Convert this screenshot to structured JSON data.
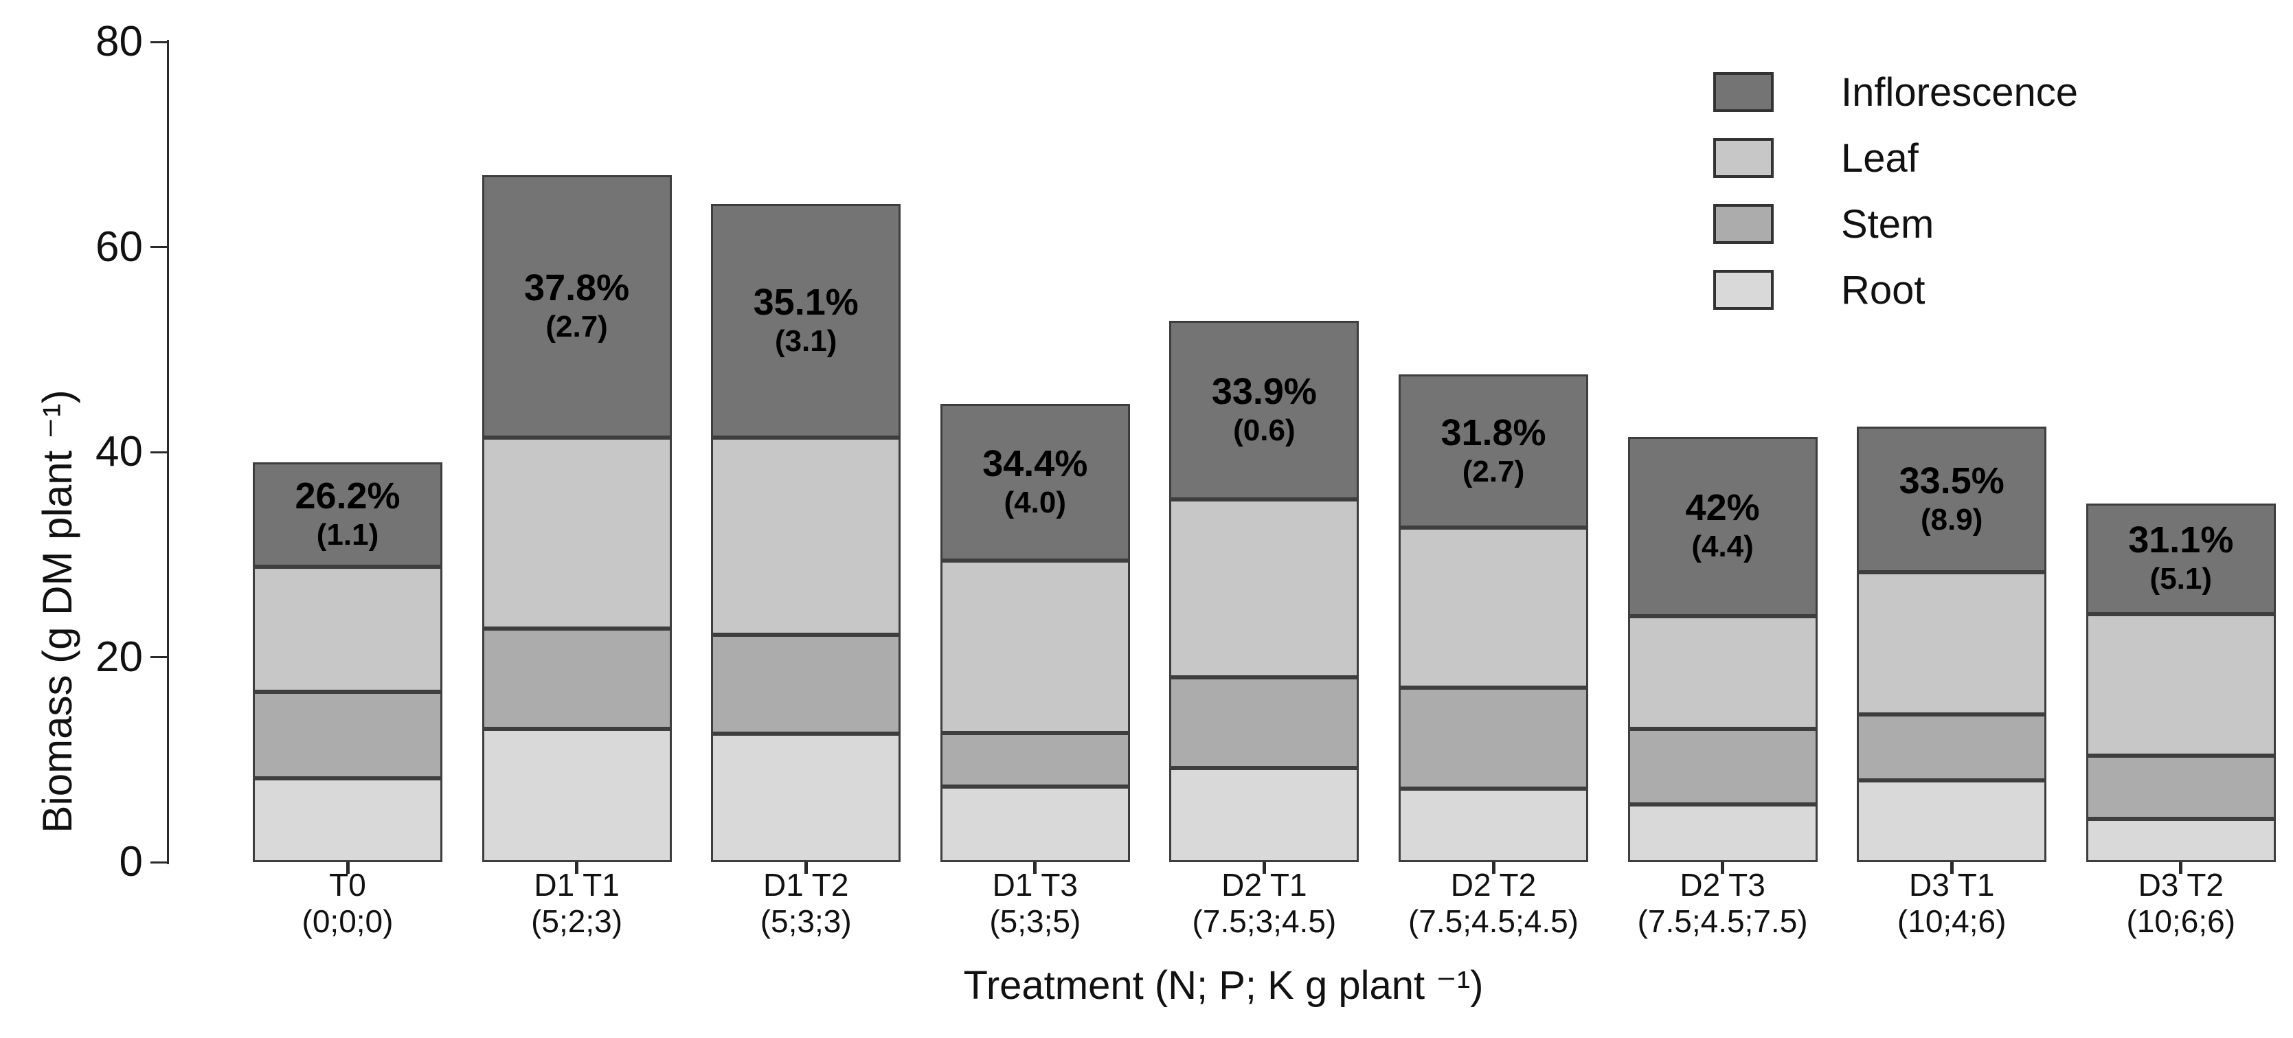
{
  "chart_data": {
    "type": "bar",
    "stacked": true,
    "orientation": "vertical",
    "title": "",
    "ylabel": "Biomass (g DM plant ⁻¹)",
    "xlabel": "Treatment (N; P; K g plant ⁻¹)",
    "ylim": [
      0,
      80
    ],
    "yticks": [
      0,
      20,
      40,
      60,
      80
    ],
    "grid": false,
    "legend": {
      "position": "top-right",
      "items": [
        {
          "label": "Inflorescence",
          "color": "#747474"
        },
        {
          "label": "Leaf",
          "color": "#c7c7c7"
        },
        {
          "label": "Stem",
          "color": "#acacac"
        },
        {
          "label": "Root",
          "color": "#d9d9d9"
        }
      ]
    },
    "stack_order_bottom_to_top": [
      "Root",
      "Stem",
      "Leaf",
      "Inflorescence"
    ],
    "categories": [
      {
        "name": "T0",
        "npk": "(0;0;0)"
      },
      {
        "name": "D1 T1",
        "npk": "(5;2;3)"
      },
      {
        "name": "D1 T2",
        "npk": "(5;3;3)"
      },
      {
        "name": "D1 T3",
        "npk": "(5;3;5)"
      },
      {
        "name": "D2 T1",
        "npk": "(7.5;3;4.5)"
      },
      {
        "name": "D2 T2",
        "npk": "(7.5;4.5;4.5)"
      },
      {
        "name": "D2 T3",
        "npk": "(7.5;4.5;7.5)"
      },
      {
        "name": "D3 T1",
        "npk": "(10;4;6)"
      },
      {
        "name": "D3 T2",
        "npk": "(10;6;6)"
      }
    ],
    "series": [
      {
        "name": "Root",
        "color": "#d9d9d9",
        "values": [
          8.2,
          13.0,
          12.5,
          7.4,
          9.2,
          7.2,
          5.6,
          8.0,
          4.2
        ]
      },
      {
        "name": "Stem",
        "color": "#acacac",
        "values": [
          8.4,
          9.8,
          9.7,
          5.2,
          8.8,
          9.8,
          7.4,
          6.4,
          6.2
        ]
      },
      {
        "name": "Leaf",
        "color": "#c7c7c7",
        "values": [
          12.2,
          18.6,
          19.2,
          16.8,
          17.4,
          15.6,
          11.0,
          13.9,
          13.8
        ]
      },
      {
        "name": "Inflorescence",
        "color": "#747474",
        "values": [
          10.2,
          25.6,
          22.8,
          15.3,
          17.4,
          15.0,
          17.5,
          14.2,
          10.8
        ]
      }
    ],
    "totals": [
      39.0,
      67.0,
      64.2,
      44.7,
      52.8,
      47.6,
      41.5,
      42.5,
      35.0
    ],
    "annotations": [
      {
        "pct": "26.2%",
        "se": "(1.1)"
      },
      {
        "pct": "37.8%",
        "se": "(2.7)"
      },
      {
        "pct": "35.1%",
        "se": "(3.1)"
      },
      {
        "pct": "34.4%",
        "se": "(4.0)"
      },
      {
        "pct": "33.9%",
        "se": "(0.6)"
      },
      {
        "pct": "31.8%",
        "se": "(2.7)"
      },
      {
        "pct": "42%",
        "se": "(4.4)"
      },
      {
        "pct": "33.5%",
        "se": "(8.9)"
      },
      {
        "pct": "31.1%",
        "se": "(5.1)"
      }
    ]
  },
  "styles": {
    "background": "#ffffff",
    "bar_border": "#3e3e3e",
    "axis_color": "#2a2a2a",
    "text_color": "#111111",
    "annotation_color": "#000000"
  }
}
